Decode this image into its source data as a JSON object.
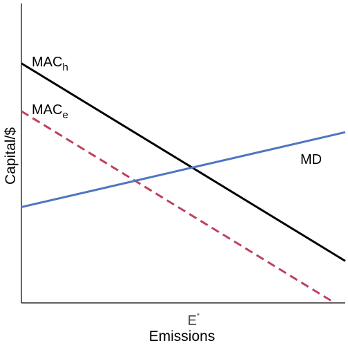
{
  "chart_data": {
    "type": "line",
    "title": "",
    "xlabel": "Emissions",
    "ylabel": "Capital/$",
    "xlim": [
      0,
      10
    ],
    "ylim": [
      0,
      10
    ],
    "grid": false,
    "legend": "none",
    "x_ticks": [
      {
        "label": "E",
        "superscript": "*",
        "value": 5.3
      }
    ],
    "series": [
      {
        "name": "MAC",
        "subscript": "h",
        "style": "solid",
        "color": "#000000",
        "x": [
          0,
          10
        ],
        "y": [
          8.0,
          1.4
        ]
      },
      {
        "name": "MAC",
        "subscript": "e",
        "style": "dashed",
        "color": "#C0415E",
        "x": [
          0,
          9.6
        ],
        "y": [
          6.4,
          0.05
        ]
      },
      {
        "name": "MD",
        "style": "solid",
        "color": "#4F75C2",
        "x": [
          0,
          10
        ],
        "y": [
          3.2,
          5.7
        ]
      }
    ]
  }
}
